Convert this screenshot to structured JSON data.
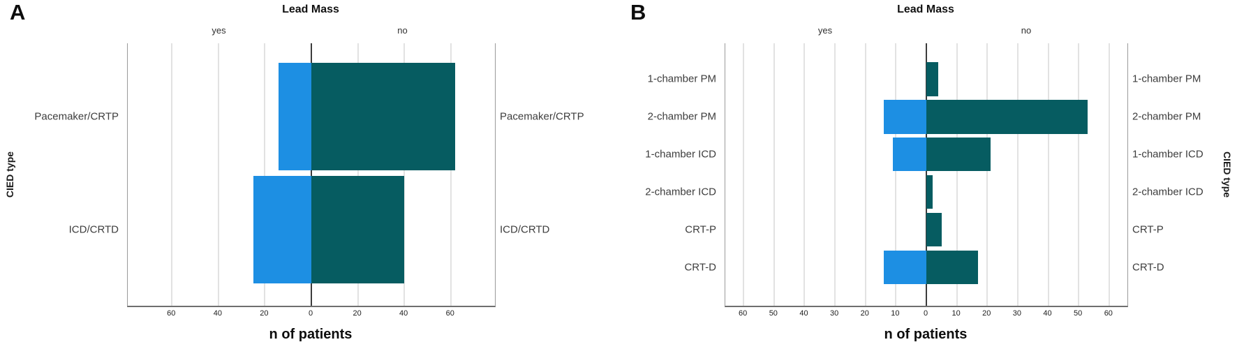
{
  "figure": {
    "background": "#ffffff"
  },
  "colors": {
    "yes_bar": "#1d8fe3",
    "no_bar": "#065c61",
    "gridline": "#c6c6c6",
    "zero_line": "#3c3c3c",
    "frame": "#9a9a9a"
  },
  "chart_data": [
    {
      "panel_label": "A",
      "type": "bar",
      "orientation": "horizontal-diverging",
      "title": "Lead Mass",
      "xlabel": "n of patients",
      "ylabel": "CIED type",
      "group_labels": [
        "yes",
        "no"
      ],
      "categories": [
        "Pacemaker/CRTP",
        "ICD/CRTD"
      ],
      "series": [
        {
          "name": "yes",
          "side": "left",
          "color": "#1d8fe3",
          "values": [
            14,
            25
          ]
        },
        {
          "name": "no",
          "side": "right",
          "color": "#065c61",
          "values": [
            62,
            40
          ]
        }
      ],
      "axis_max": 79,
      "tick_values": [
        -60,
        -40,
        -20,
        0,
        20,
        40,
        60
      ],
      "tick_labels": [
        "60",
        "40",
        "20",
        "0",
        "20",
        "40",
        "60"
      ],
      "grid": true,
      "legend_position": "none",
      "category_labels_both_sides": true
    },
    {
      "panel_label": "B",
      "type": "bar",
      "orientation": "horizontal-diverging",
      "title": "Lead Mass",
      "xlabel": "n of patients",
      "ylabel": "CIED type",
      "group_labels": [
        "yes",
        "no"
      ],
      "categories": [
        "1-chamber PM",
        "2-chamber PM",
        "1-chamber ICD",
        "2-chamber ICD",
        "CRT-P",
        "CRT-D"
      ],
      "series": [
        {
          "name": "yes",
          "side": "left",
          "color": "#1d8fe3",
          "values": [
            0,
            14,
            11,
            0,
            0,
            14
          ]
        },
        {
          "name": "no",
          "side": "right",
          "color": "#065c61",
          "values": [
            4,
            53,
            21,
            2,
            5,
            17
          ]
        }
      ],
      "axis_max": 66,
      "tick_values": [
        -60,
        -50,
        -40,
        -30,
        -20,
        -10,
        0,
        10,
        20,
        30,
        40,
        50,
        60
      ],
      "tick_labels": [
        "60",
        "50",
        "40",
        "30",
        "20",
        "10",
        "0",
        "10",
        "20",
        "30",
        "40",
        "50",
        "60"
      ],
      "grid": true,
      "legend_position": "none",
      "category_labels_both_sides": true
    }
  ]
}
